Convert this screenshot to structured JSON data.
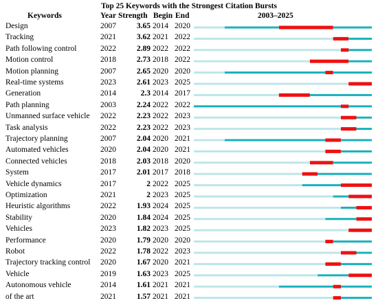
{
  "header": {
    "title": "Top 25 Keywords with the Strongest Citation Bursts",
    "col_keywords": "Keywords",
    "col_year": "Year",
    "col_strength": "Strength",
    "col_begin": "Begin",
    "col_end": "End",
    "col_span": "2003–2025"
  },
  "chart_data": {
    "type": "table",
    "title": "Top 25 Keywords with the Strongest Citation Bursts",
    "timeline_range": [
      2003,
      2025
    ],
    "colors": {
      "before_first_year": "#bde6e8",
      "active": "#18b1bd",
      "burst": "#ee1111"
    },
    "rows": [
      {
        "keyword": "Design",
        "year": 2007,
        "strength": "3.65",
        "begin": 2014,
        "end": 2020
      },
      {
        "keyword": "Tracking",
        "year": 2021,
        "strength": "3.62",
        "begin": 2021,
        "end": 2022
      },
      {
        "keyword": "Path following control",
        "year": 2022,
        "strength": "2.89",
        "begin": 2022,
        "end": 2022
      },
      {
        "keyword": "Motion control",
        "year": 2018,
        "strength": "2.73",
        "begin": 2018,
        "end": 2022
      },
      {
        "keyword": "Motion planning",
        "year": 2007,
        "strength": "2.65",
        "begin": 2020,
        "end": 2020
      },
      {
        "keyword": "Real-time systems",
        "year": 2023,
        "strength": "2.61",
        "begin": 2023,
        "end": 2025
      },
      {
        "keyword": "Generation",
        "year": 2014,
        "strength": "2.3",
        "begin": 2014,
        "end": 2017
      },
      {
        "keyword": "Path planning",
        "year": 2003,
        "strength": "2.24",
        "begin": 2022,
        "end": 2022
      },
      {
        "keyword": "Unmanned surface vehicle",
        "year": 2022,
        "strength": "2.23",
        "begin": 2022,
        "end": 2023
      },
      {
        "keyword": "Task analysis",
        "year": 2022,
        "strength": "2.23",
        "begin": 2022,
        "end": 2023
      },
      {
        "keyword": "Trajectory planning",
        "year": 2007,
        "strength": "2.04",
        "begin": 2020,
        "end": 2021
      },
      {
        "keyword": "Automated vehicles",
        "year": 2020,
        "strength": "2.04",
        "begin": 2020,
        "end": 2021
      },
      {
        "keyword": "Connected vehicles",
        "year": 2018,
        "strength": "2.03",
        "begin": 2018,
        "end": 2020
      },
      {
        "keyword": "System",
        "year": 2017,
        "strength": "2.01",
        "begin": 2017,
        "end": 2018
      },
      {
        "keyword": "Vehicle dynamics",
        "year": 2017,
        "strength": "2",
        "begin": 2022,
        "end": 2025
      },
      {
        "keyword": "Optimization",
        "year": 2021,
        "strength": "2",
        "begin": 2023,
        "end": 2025
      },
      {
        "keyword": "Heuristic algorithms",
        "year": 2022,
        "strength": "1.93",
        "begin": 2024,
        "end": 2025
      },
      {
        "keyword": "Stability",
        "year": 2020,
        "strength": "1.84",
        "begin": 2024,
        "end": 2025
      },
      {
        "keyword": "Vehicles",
        "year": 2023,
        "strength": "1.82",
        "begin": 2023,
        "end": 2025
      },
      {
        "keyword": "Performance",
        "year": 2020,
        "strength": "1.79",
        "begin": 2020,
        "end": 2020
      },
      {
        "keyword": "Robot",
        "year": 2022,
        "strength": "1.78",
        "begin": 2022,
        "end": 2023
      },
      {
        "keyword": "Trajectory tracking control",
        "year": 2020,
        "strength": "1.67",
        "begin": 2020,
        "end": 2021
      },
      {
        "keyword": "Vehicle",
        "year": 2019,
        "strength": "1.63",
        "begin": 2023,
        "end": 2025
      },
      {
        "keyword": "Autonomous vehicle",
        "year": 2014,
        "strength": "1.61",
        "begin": 2021,
        "end": 2021
      },
      {
        "keyword": "of the art",
        "year": 2021,
        "strength": "1.57",
        "begin": 2021,
        "end": 2021
      }
    ]
  }
}
